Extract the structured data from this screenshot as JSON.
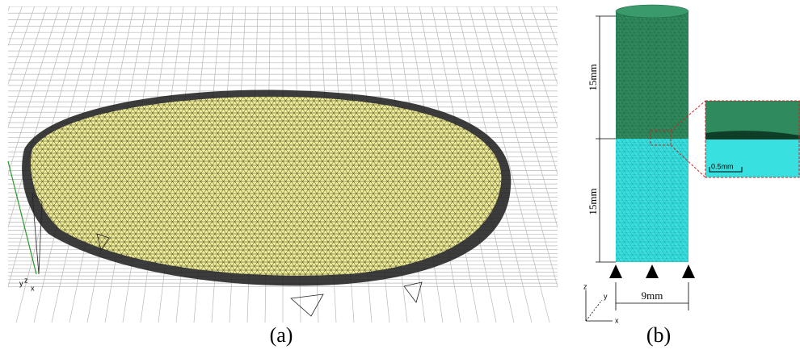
{
  "panel_a": {
    "caption": "(a)",
    "axes": {
      "z": "z",
      "y": "y",
      "x": "x"
    }
  },
  "panel_b": {
    "caption": "(b)",
    "dimensions": {
      "upper_height": "15mm",
      "lower_height": "15mm",
      "diameter": "9mm"
    },
    "inset": {
      "scale_bar": "0.5mm"
    },
    "axes": {
      "z": "z",
      "y": "y",
      "x": "x"
    }
  }
}
